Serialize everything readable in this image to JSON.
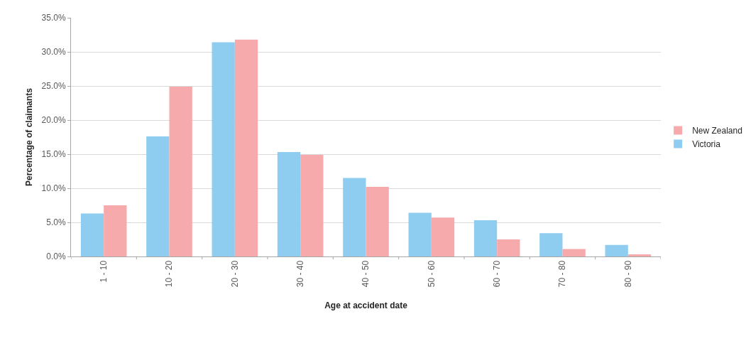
{
  "chart_data": {
    "type": "bar",
    "categories": [
      "1 - 10",
      "10 - 20",
      "20 - 30",
      "30 - 40",
      "40 - 50",
      "50 - 60",
      "60 - 70",
      "70 - 80",
      "80 - 90"
    ],
    "series": [
      {
        "name": "Victoria",
        "color": "#8ecdf0",
        "values": [
          6.3,
          17.6,
          31.4,
          15.3,
          11.5,
          6.4,
          5.3,
          3.4,
          1.7
        ]
      },
      {
        "name": "New Zealand",
        "color": "#f7aaab",
        "values": [
          7.5,
          24.9,
          31.8,
          14.9,
          10.2,
          5.7,
          2.5,
          1.1,
          0.3
        ]
      }
    ],
    "xlabel": "Age at accident date",
    "ylabel": "Percentage of claimants",
    "ylim": [
      0,
      35
    ],
    "yticks": [
      {
        "value": 0,
        "label": "0.0%"
      },
      {
        "value": 5,
        "label": "5.0%"
      },
      {
        "value": 10,
        "label": "10.0%"
      },
      {
        "value": 15,
        "label": "15.0%"
      },
      {
        "value": 20,
        "label": "20.0%"
      },
      {
        "value": 25,
        "label": "25.0%"
      },
      {
        "value": 30,
        "label": "30.0%"
      },
      {
        "value": 35,
        "label": "35.0%"
      }
    ],
    "grid": "y",
    "legend": "right"
  }
}
